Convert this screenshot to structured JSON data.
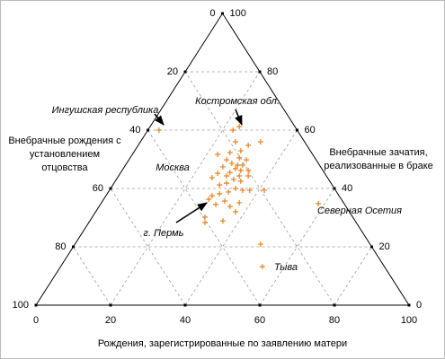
{
  "chart_data": {
    "type": "ternary",
    "x_label": "Рождения, зарегистрированные по заявлению матери",
    "y_label": [
      "Внебрачные рождения с",
      "установлением",
      "отцовства"
    ],
    "y2_label": [
      "Внебрачные зачатия,",
      "реализованные в браке"
    ],
    "xlim": [
      0,
      100
    ],
    "xticks": [
      0,
      20,
      40,
      60,
      80,
      100
    ],
    "ylim": [
      100,
      0
    ],
    "yticks": [
      0,
      20,
      40,
      60,
      80,
      100
    ],
    "y2lim": [
      0,
      100
    ],
    "y2ticks": [
      100,
      80,
      60,
      40,
      20,
      0
    ],
    "grid": true,
    "color": "#e8821e",
    "x": [
      33.0,
      52.8,
      54.5,
      60.2,
      53.5,
      56.9,
      54.9,
      52.0,
      48.7,
      54.5,
      56.4,
      51.1,
      52.5,
      54.0,
      55.4,
      50.1,
      53.5,
      54.9,
      52.0,
      56.9,
      48.7,
      51.1,
      54.5,
      56.9,
      47.2,
      53.0,
      54.9,
      51.1,
      49.2,
      53.5,
      55.4,
      51.6,
      57.3,
      61.2,
      47.2,
      49.2,
      46.3,
      50.6,
      54.5,
      48.2,
      52.0,
      53.5,
      45.3,
      50.1,
      45.3,
      75.7,
      60.2,
      60.7
    ],
    "values": [
      40.0,
      40.0,
      38.8,
      44.0,
      44.0,
      45.2,
      47.1,
      47.7,
      48.3,
      49.5,
      50.2,
      50.2,
      51.4,
      52.0,
      52.0,
      52.6,
      53.2,
      53.8,
      54.5,
      53.8,
      54.8,
      55.7,
      55.7,
      55.7,
      56.3,
      56.9,
      57.5,
      58.2,
      58.8,
      60.0,
      60.6,
      61.2,
      60.6,
      60.6,
      62.5,
      61.8,
      63.7,
      64.3,
      64.9,
      65.5,
      66.2,
      68.0,
      69.8,
      71.1,
      71.7,
      65.2,
      79.1,
      86.8
    ],
    "annotations": [
      {
        "text": "Ингушская республика"
      },
      {
        "text": "Костромская обл."
      },
      {
        "text": "Москва"
      },
      {
        "text": "г. Пермь"
      },
      {
        "text": "Северная Осетия"
      },
      {
        "text": "Тыва"
      }
    ]
  }
}
